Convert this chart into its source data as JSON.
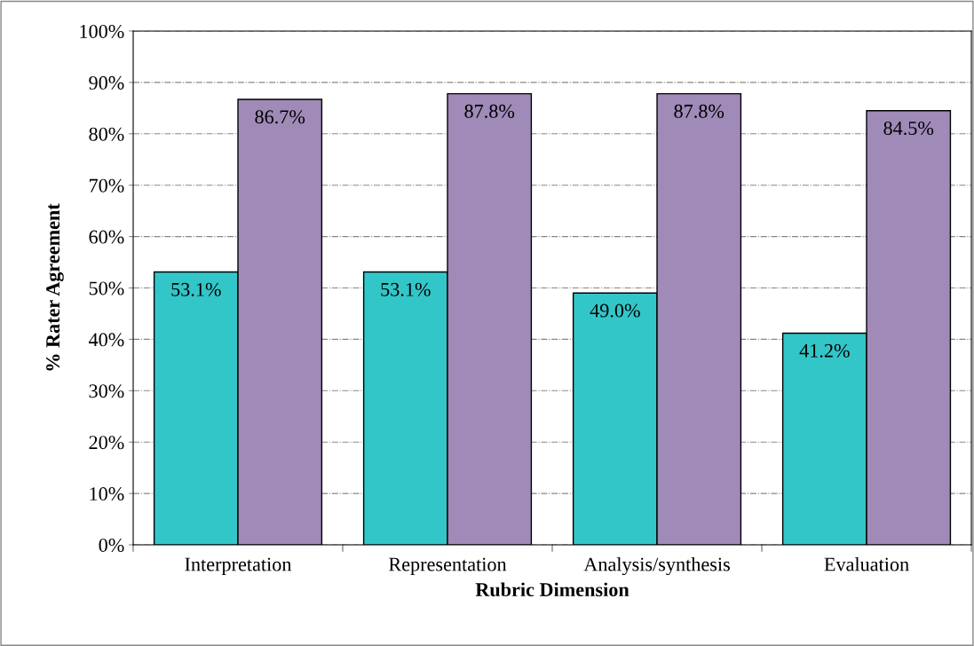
{
  "chart_data": {
    "type": "bar",
    "xlabel": "Rubric Dimension",
    "ylabel": "% Rater Agreement",
    "categories": [
      "Interpretation",
      "Representation",
      "Analysis/synthesis",
      "Evaluation"
    ],
    "series": [
      {
        "color": "#33c6c9",
        "values": [
          53.1,
          53.1,
          49.0,
          41.2
        ],
        "value_labels": [
          "53.1%",
          "53.1%",
          "49.0%",
          "41.2%"
        ]
      },
      {
        "color": "#a08ab8",
        "values": [
          86.7,
          87.8,
          87.8,
          84.5
        ],
        "value_labels": [
          "86.7%",
          "87.8%",
          "87.8%",
          "84.5%"
        ]
      }
    ],
    "ylim": [
      0,
      100
    ],
    "yticks": [
      {
        "value": 0,
        "label": "0%"
      },
      {
        "value": 10,
        "label": "10%"
      },
      {
        "value": 20,
        "label": "20%"
      },
      {
        "value": 30,
        "label": "30%"
      },
      {
        "value": 40,
        "label": "40%"
      },
      {
        "value": 50,
        "label": "50%"
      },
      {
        "value": 60,
        "label": "60%"
      },
      {
        "value": 70,
        "label": "70%"
      },
      {
        "value": 80,
        "label": "80%"
      },
      {
        "value": 90,
        "label": "90%"
      },
      {
        "value": 100,
        "label": "100%"
      }
    ],
    "grid": "y",
    "legend": false
  }
}
